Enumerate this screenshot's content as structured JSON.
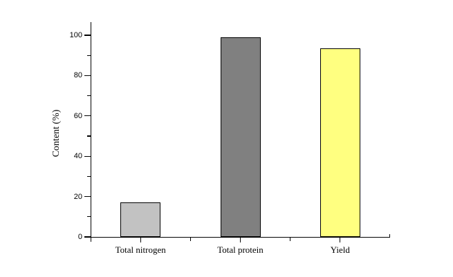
{
  "chart_data": {
    "type": "bar",
    "title": "",
    "xlabel": "",
    "ylabel": "Content (%)",
    "categories": [
      "Total nitrogen",
      "Total protein",
      "Yield"
    ],
    "values": [
      17.2,
      99,
      93.5
    ],
    "bar_colors": [
      "#c2c2c2",
      "#808080",
      "#ffff80"
    ],
    "bar_border_color": "#000000",
    "ylim": [
      0,
      106.5
    ],
    "y_major_ticks": [
      0,
      20,
      40,
      60,
      80,
      100
    ],
    "y_minor_ticks": [
      10,
      30,
      50,
      70,
      90
    ],
    "grid": "off",
    "legend": "none",
    "background_color": "#ffffff",
    "axis_color": "#000000",
    "text_color": "#000000"
  }
}
